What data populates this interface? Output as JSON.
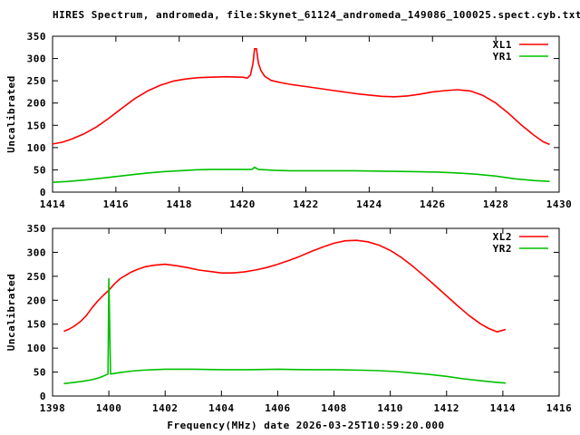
{
  "title": "HIRES Spectrum, andromeda, file:Skynet_61124_andromeda_149086_100025.spect.cyb.txt",
  "xlabel": "Frequency(MHz) date 2026-03-25T10:59:20.000",
  "colors": {
    "background": "#ffffff",
    "axis": "#000000",
    "series_red": "#ff0000",
    "series_green": "#00c000"
  },
  "chart_data": [
    {
      "type": "line",
      "title": "",
      "ylabel": "Uncalibrated",
      "xlim": [
        1414,
        1430
      ],
      "ylim": [
        0,
        350
      ],
      "xticks": [
        1414,
        1416,
        1418,
        1420,
        1422,
        1424,
        1426,
        1428,
        1430
      ],
      "yticks": [
        0,
        50,
        100,
        150,
        200,
        250,
        300,
        350
      ],
      "grid": false,
      "legend_position": "top-right-inside",
      "series": [
        {
          "name": "XL1",
          "color": "#ff0000",
          "points": [
            [
              1414.0,
              108
            ],
            [
              1414.3,
              112
            ],
            [
              1414.6,
              119
            ],
            [
              1415.0,
              131
            ],
            [
              1415.4,
              147
            ],
            [
              1415.8,
              167
            ],
            [
              1416.2,
              189
            ],
            [
              1416.6,
              210
            ],
            [
              1417.0,
              227
            ],
            [
              1417.4,
              240
            ],
            [
              1417.8,
              249
            ],
            [
              1418.2,
              254
            ],
            [
              1418.6,
              257
            ],
            [
              1419.0,
              258
            ],
            [
              1419.5,
              259
            ],
            [
              1420.0,
              258
            ],
            [
              1420.15,
              256
            ],
            [
              1420.25,
              263
            ],
            [
              1420.33,
              290
            ],
            [
              1420.38,
              322
            ],
            [
              1420.44,
              322
            ],
            [
              1420.5,
              290
            ],
            [
              1420.58,
              273
            ],
            [
              1420.7,
              260
            ],
            [
              1420.9,
              251
            ],
            [
              1421.2,
              246
            ],
            [
              1421.6,
              241
            ],
            [
              1422.0,
              237
            ],
            [
              1422.4,
              233
            ],
            [
              1422.8,
              229
            ],
            [
              1423.2,
              225
            ],
            [
              1423.6,
              221
            ],
            [
              1424.0,
              218
            ],
            [
              1424.4,
              215
            ],
            [
              1424.8,
              214
            ],
            [
              1425.2,
              216
            ],
            [
              1425.6,
              220
            ],
            [
              1426.0,
              225
            ],
            [
              1426.4,
              228
            ],
            [
              1426.8,
              230
            ],
            [
              1427.2,
              227
            ],
            [
              1427.6,
              217
            ],
            [
              1428.0,
              200
            ],
            [
              1428.4,
              177
            ],
            [
              1428.8,
              151
            ],
            [
              1429.2,
              128
            ],
            [
              1429.5,
              113
            ],
            [
              1429.7,
              107
            ]
          ]
        },
        {
          "name": "YR1",
          "color": "#00c000",
          "points": [
            [
              1414.0,
              22
            ],
            [
              1414.5,
              24
            ],
            [
              1415.0,
              27
            ],
            [
              1415.5,
              31
            ],
            [
              1416.0,
              35
            ],
            [
              1416.5,
              39
            ],
            [
              1417.0,
              43
            ],
            [
              1417.5,
              46
            ],
            [
              1418.0,
              48
            ],
            [
              1418.5,
              50
            ],
            [
              1419.0,
              51
            ],
            [
              1419.5,
              51
            ],
            [
              1420.0,
              51
            ],
            [
              1420.3,
              51
            ],
            [
              1420.38,
              56
            ],
            [
              1420.5,
              51
            ],
            [
              1421.0,
              49
            ],
            [
              1421.5,
              48
            ],
            [
              1422.5,
              48
            ],
            [
              1423.5,
              48
            ],
            [
              1424.5,
              47
            ],
            [
              1425.5,
              46
            ],
            [
              1426.2,
              45
            ],
            [
              1426.8,
              43
            ],
            [
              1427.4,
              40
            ],
            [
              1428.0,
              36
            ],
            [
              1428.6,
              30
            ],
            [
              1429.2,
              26
            ],
            [
              1429.7,
              24
            ]
          ]
        }
      ]
    },
    {
      "type": "line",
      "title": "",
      "ylabel": "Uncalibrated",
      "xlim": [
        1398,
        1416
      ],
      "ylim": [
        0,
        350
      ],
      "xticks": [
        1398,
        1400,
        1402,
        1404,
        1406,
        1408,
        1410,
        1412,
        1414,
        1416
      ],
      "yticks": [
        0,
        50,
        100,
        150,
        200,
        250,
        300,
        350
      ],
      "grid": false,
      "legend_position": "top-right-inside",
      "series": [
        {
          "name": "XL2",
          "color": "#ff0000",
          "points": [
            [
              1398.4,
              135
            ],
            [
              1398.6,
              140
            ],
            [
              1398.8,
              147
            ],
            [
              1399.0,
              156
            ],
            [
              1399.2,
              168
            ],
            [
              1399.4,
              184
            ],
            [
              1399.6,
              198
            ],
            [
              1399.8,
              210
            ],
            [
              1400.0,
              221
            ],
            [
              1400.2,
              234
            ],
            [
              1400.4,
              245
            ],
            [
              1400.6,
              252
            ],
            [
              1400.8,
              259
            ],
            [
              1401.0,
              264
            ],
            [
              1401.3,
              270
            ],
            [
              1401.6,
              273
            ],
            [
              1402.0,
              275
            ],
            [
              1402.4,
              272
            ],
            [
              1402.8,
              268
            ],
            [
              1403.2,
              263
            ],
            [
              1403.6,
              260
            ],
            [
              1404.0,
              257
            ],
            [
              1404.4,
              257
            ],
            [
              1404.8,
              259
            ],
            [
              1405.2,
              263
            ],
            [
              1405.6,
              268
            ],
            [
              1406.0,
              275
            ],
            [
              1406.4,
              283
            ],
            [
              1406.8,
              292
            ],
            [
              1407.2,
              302
            ],
            [
              1407.6,
              311
            ],
            [
              1408.0,
              319
            ],
            [
              1408.4,
              324
            ],
            [
              1408.8,
              325
            ],
            [
              1409.2,
              322
            ],
            [
              1409.6,
              315
            ],
            [
              1410.0,
              304
            ],
            [
              1410.4,
              289
            ],
            [
              1410.8,
              271
            ],
            [
              1411.2,
              251
            ],
            [
              1411.6,
              230
            ],
            [
              1412.0,
              209
            ],
            [
              1412.4,
              188
            ],
            [
              1412.8,
              168
            ],
            [
              1413.2,
              151
            ],
            [
              1413.5,
              141
            ],
            [
              1413.8,
              134
            ],
            [
              1414.1,
              139
            ]
          ]
        },
        {
          "name": "YR2",
          "color": "#00c000",
          "points": [
            [
              1398.4,
              26
            ],
            [
              1399.0,
              30
            ],
            [
              1399.4,
              34
            ],
            [
              1399.7,
              39
            ],
            [
              1399.9,
              44
            ],
            [
              1399.97,
              46
            ],
            [
              1400.0,
              245
            ],
            [
              1400.06,
              46
            ],
            [
              1400.4,
              49
            ],
            [
              1400.8,
              52
            ],
            [
              1401.2,
              54
            ],
            [
              1401.6,
              55
            ],
            [
              1402.0,
              56
            ],
            [
              1403.0,
              56
            ],
            [
              1404.0,
              55
            ],
            [
              1405.0,
              55
            ],
            [
              1406.0,
              56
            ],
            [
              1407.0,
              55
            ],
            [
              1408.0,
              55
            ],
            [
              1409.0,
              54
            ],
            [
              1409.6,
              53
            ],
            [
              1410.2,
              51
            ],
            [
              1410.8,
              48
            ],
            [
              1411.4,
              45
            ],
            [
              1412.0,
              41
            ],
            [
              1412.6,
              36
            ],
            [
              1413.2,
              32
            ],
            [
              1413.7,
              29
            ],
            [
              1414.1,
              27
            ]
          ]
        }
      ]
    }
  ]
}
